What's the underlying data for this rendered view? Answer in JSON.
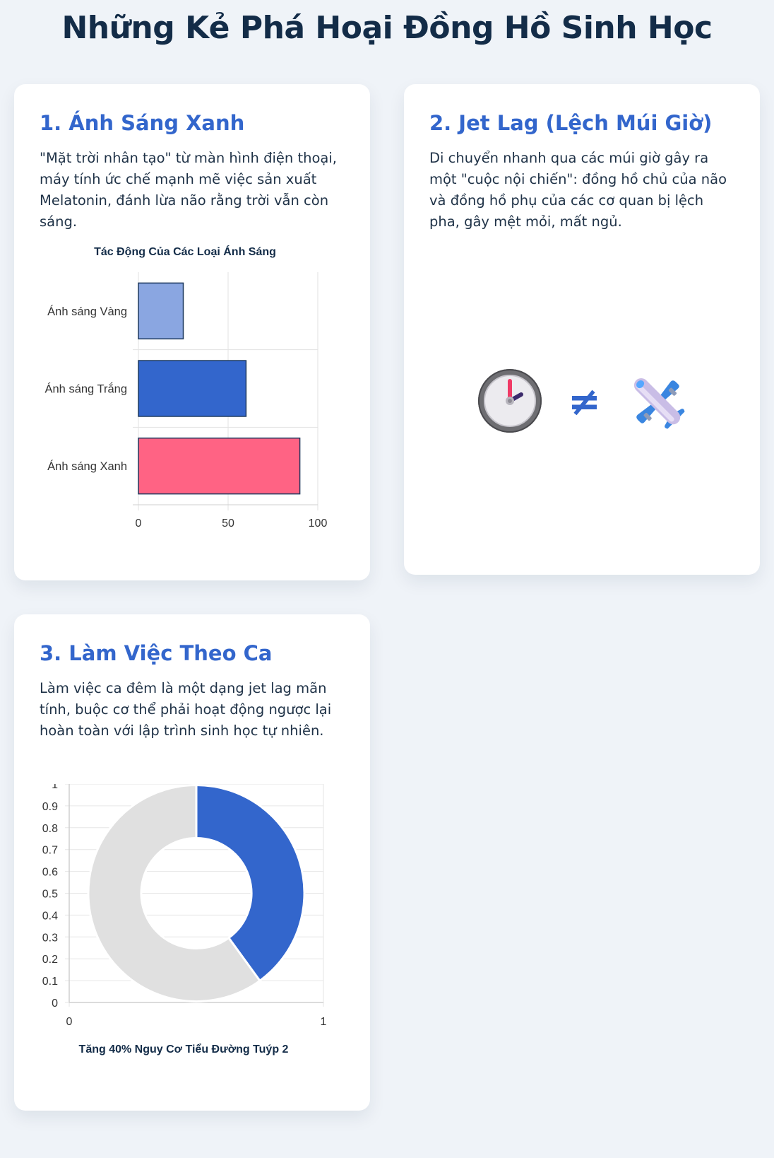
{
  "page": {
    "title": "Những Kẻ Phá Hoại Đồng Hồ Sinh Học"
  },
  "cards": [
    {
      "heading": "1. Ánh Sáng Xanh",
      "text": "\"Mặt trời nhân tạo\" từ màn hình điện thoại, máy tính ức chế mạnh mẽ việc sản xuất Melatonin, đánh lừa não rằng trời vẫn còn sáng."
    },
    {
      "heading": "2. Jet Lag (Lệch Múi Giờ)",
      "text": "Di chuyển nhanh qua các múi giờ gây ra một \"cuộc nội chiến\": đồng hồ chủ của não và đồng hồ phụ của các cơ quan bị lệch pha, gây mệt mỏi, mất ngủ.",
      "icons": [
        "clock-icon",
        "not-equal-icon",
        "airplane-icon"
      ],
      "neq_symbol": "≠"
    },
    {
      "heading": "3. Làm Việc Theo Ca",
      "text": "Làm việc ca đêm là một dạng jet lag mãn tính, buộc cơ thể phải hoạt động ngược lại hoàn toàn với lập trình sinh học tự nhiên."
    }
  ],
  "chart_data": [
    {
      "type": "bar",
      "orientation": "horizontal",
      "title": "Tác Động Của Các Loại Ánh Sáng",
      "categories": [
        "Ánh sáng Vàng",
        "Ánh sáng Trắng",
        "Ánh sáng Xanh"
      ],
      "values": [
        25,
        60,
        90
      ],
      "colors": [
        "#8aa6e1",
        "#3366cc",
        "#ff6384"
      ],
      "border_color": "#1e3a5f",
      "xlim": [
        0,
        100
      ],
      "xticks": [
        0,
        50,
        100
      ],
      "grid": true
    },
    {
      "type": "pie",
      "donut": true,
      "title": "Tăng 40% Nguy Cơ Tiểu Đường Tuýp 2",
      "values": [
        40,
        60
      ],
      "colors": [
        "#3366cc",
        "#e0e0e0"
      ],
      "yticks": [
        0,
        0.1,
        0.2,
        0.3,
        0.4,
        0.5,
        0.6,
        0.7,
        0.8,
        0.9,
        1
      ],
      "xticks": [
        0,
        1
      ],
      "grid": true
    }
  ]
}
